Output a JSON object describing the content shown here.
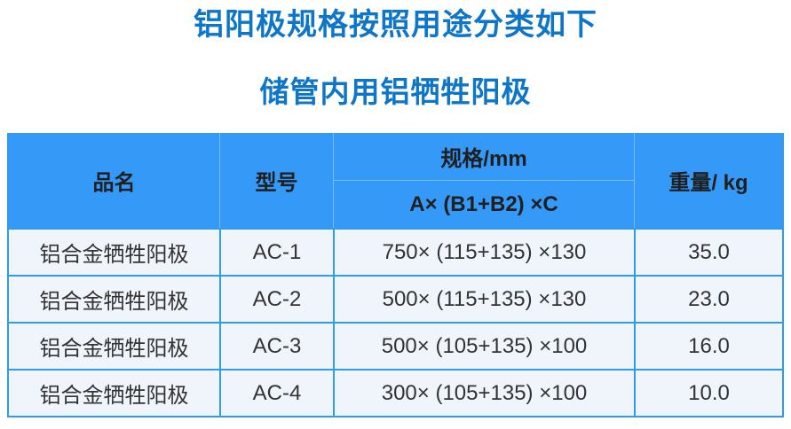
{
  "page": {
    "title": "铝阳极规格按照用途分类如下",
    "subtitle": "储管内用铝牺牲阳极"
  },
  "colors": {
    "title_text": "#0E76C8",
    "header_bg": "#3499F7",
    "header_text": "#1F1F1F",
    "body_bg": "#F0F5FB",
    "body_border": "#2E9BEF",
    "body_text": "#333333"
  },
  "table": {
    "columns": [
      {
        "key": "name",
        "label": "品名"
      },
      {
        "key": "model",
        "label": "型号"
      },
      {
        "key": "spec",
        "label": "规格/mm",
        "sublabel": "A× (B1+B2) ×C"
      },
      {
        "key": "weight",
        "label": "重量/ kg"
      }
    ],
    "rows": [
      {
        "name": "铝合金牺牲阳极",
        "model": "AC-1",
        "spec": "750× (115+135) ×130",
        "weight": "35.0"
      },
      {
        "name": "铝合金牺牲阳极",
        "model": "AC-2",
        "spec": "500× (115+135) ×130",
        "weight": "23.0"
      },
      {
        "name": "铝合金牺牲阳极",
        "model": "AC-3",
        "spec": "500× (105+135) ×100",
        "weight": "16.0"
      },
      {
        "name": "铝合金牺牲阳极",
        "model": "AC-4",
        "spec": "300× (105+135) ×100",
        "weight": "10.0"
      }
    ]
  }
}
